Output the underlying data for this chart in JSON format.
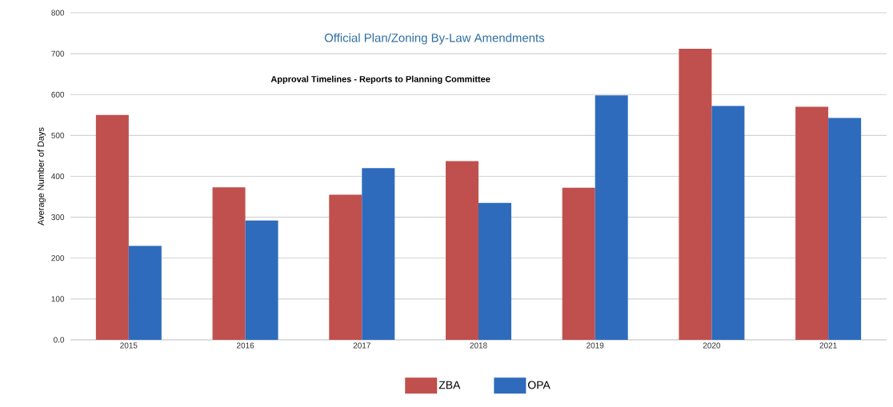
{
  "chart_data": {
    "type": "bar",
    "title": "Official Plan/Zoning By-Law Amendments",
    "subtitle": "Approval Timelines - Reports to Planning Committee",
    "ylabel": "Average Number of Days",
    "categories": [
      "2015",
      "2016",
      "2017",
      "2018",
      "2019",
      "2020",
      "2021"
    ],
    "series": [
      {
        "name": "ZBA",
        "color": "#c0504d",
        "values": [
          550,
          373,
          355,
          437,
          372,
          712,
          570
        ]
      },
      {
        "name": "OPA",
        "color": "#2e6bbd",
        "values": [
          230,
          292,
          420,
          335,
          598,
          572,
          543
        ]
      }
    ],
    "ylim": [
      0,
      800
    ],
    "yticks": [
      {
        "value": 0,
        "label": "0.0"
      },
      100,
      200,
      300,
      400,
      500,
      600,
      700,
      800
    ],
    "grid": "y",
    "legend": "bottom"
  }
}
